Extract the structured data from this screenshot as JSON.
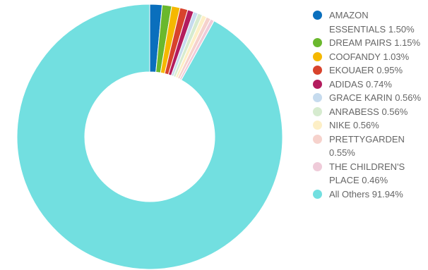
{
  "chart_data": {
    "type": "pie",
    "variant": "donut",
    "legend_position": "right",
    "slices": [
      {
        "label": "AMAZON ESSENTIALS",
        "value": 1.5,
        "value_text": "1.50%",
        "color": "#0a6fbd"
      },
      {
        "label": "DREAM PAIRS",
        "value": 1.15,
        "value_text": "1.15%",
        "color": "#6ab82d"
      },
      {
        "label": "COOFANDY",
        "value": 1.03,
        "value_text": "1.03%",
        "color": "#f5b800"
      },
      {
        "label": "EKOUAER",
        "value": 0.95,
        "value_text": "0.95%",
        "color": "#d8432c"
      },
      {
        "label": "ADIDAS",
        "value": 0.74,
        "value_text": "0.74%",
        "color": "#b31c5e"
      },
      {
        "label": "GRACE KARIN",
        "value": 0.56,
        "value_text": "0.56%",
        "color": "#c6dbee"
      },
      {
        "label": "ANRABESS",
        "value": 0.56,
        "value_text": "0.56%",
        "color": "#d6ebcf"
      },
      {
        "label": "NIKE",
        "value": 0.56,
        "value_text": "0.56%",
        "color": "#fdefc6"
      },
      {
        "label": "PRETTYGARDEN",
        "value": 0.55,
        "value_text": "0.55%",
        "color": "#f6d2cc"
      },
      {
        "label": "THE CHILDREN'S PLACE",
        "value": 0.46,
        "value_text": "0.46%",
        "color": "#efcbd9"
      },
      {
        "label": "All Others",
        "value": 91.94,
        "value_text": "91.94%",
        "color": "#72dfe0"
      }
    ]
  }
}
